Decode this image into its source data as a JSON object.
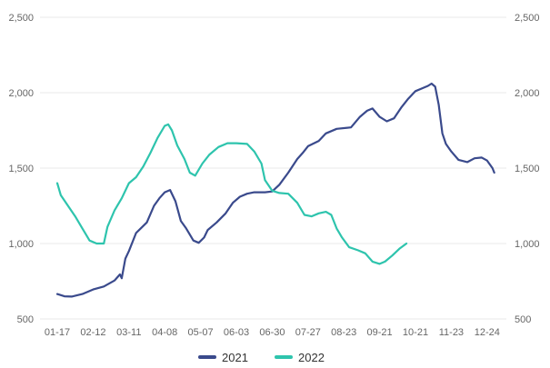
{
  "chart_data": {
    "type": "line",
    "title": "",
    "xlabel": "",
    "ylabel": "",
    "x_ticks": [
      "01-17",
      "02-12",
      "03-11",
      "04-08",
      "05-07",
      "06-03",
      "06-30",
      "07-27",
      "08-23",
      "09-21",
      "10-21",
      "11-23",
      "12-24"
    ],
    "y_ticks": [
      "500",
      "1,000",
      "1,500",
      "2,000",
      "2,500"
    ],
    "ylim": [
      500,
      2500
    ],
    "grid": true,
    "legend_position": "bottom",
    "series": [
      {
        "name": "2021",
        "color": "#3a4a8c",
        "points": [
          [
            0,
            665
          ],
          [
            0.2,
            650
          ],
          [
            0.4,
            648
          ],
          [
            0.7,
            665
          ],
          [
            1.0,
            695
          ],
          [
            1.3,
            715
          ],
          [
            1.6,
            755
          ],
          [
            1.75,
            795
          ],
          [
            1.8,
            770
          ],
          [
            1.9,
            900
          ],
          [
            2.0,
            950
          ],
          [
            2.2,
            1070
          ],
          [
            2.5,
            1140
          ],
          [
            2.7,
            1250
          ],
          [
            2.85,
            1300
          ],
          [
            3.0,
            1340
          ],
          [
            3.15,
            1355
          ],
          [
            3.3,
            1280
          ],
          [
            3.45,
            1150
          ],
          [
            3.6,
            1100
          ],
          [
            3.8,
            1020
          ],
          [
            3.95,
            1005
          ],
          [
            4.1,
            1040
          ],
          [
            4.2,
            1090
          ],
          [
            4.45,
            1140
          ],
          [
            4.7,
            1200
          ],
          [
            4.9,
            1270
          ],
          [
            5.1,
            1310
          ],
          [
            5.3,
            1330
          ],
          [
            5.5,
            1340
          ],
          [
            5.8,
            1340
          ],
          [
            6.0,
            1345
          ],
          [
            6.2,
            1390
          ],
          [
            6.45,
            1470
          ],
          [
            6.7,
            1560
          ],
          [
            6.85,
            1600
          ],
          [
            7.0,
            1645
          ],
          [
            7.3,
            1680
          ],
          [
            7.5,
            1730
          ],
          [
            7.8,
            1760
          ],
          [
            8.2,
            1770
          ],
          [
            8.45,
            1840
          ],
          [
            8.65,
            1880
          ],
          [
            8.8,
            1895
          ],
          [
            9.0,
            1840
          ],
          [
            9.2,
            1810
          ],
          [
            9.4,
            1830
          ],
          [
            9.6,
            1900
          ],
          [
            9.8,
            1960
          ],
          [
            10.0,
            2010
          ],
          [
            10.2,
            2030
          ],
          [
            10.35,
            2045
          ],
          [
            10.45,
            2060
          ],
          [
            10.55,
            2040
          ],
          [
            10.65,
            1920
          ],
          [
            10.75,
            1730
          ],
          [
            10.85,
            1660
          ],
          [
            11.0,
            1610
          ],
          [
            11.2,
            1555
          ],
          [
            11.45,
            1540
          ],
          [
            11.65,
            1565
          ],
          [
            11.85,
            1570
          ],
          [
            12.0,
            1550
          ],
          [
            12.15,
            1500
          ],
          [
            12.2,
            1470
          ]
        ]
      },
      {
        "name": "2022",
        "color": "#2ec4ad",
        "points": [
          [
            0,
            1400
          ],
          [
            0.1,
            1320
          ],
          [
            0.3,
            1250
          ],
          [
            0.5,
            1180
          ],
          [
            0.7,
            1100
          ],
          [
            0.9,
            1020
          ],
          [
            1.1,
            1000
          ],
          [
            1.3,
            1000
          ],
          [
            1.4,
            1110
          ],
          [
            1.6,
            1220
          ],
          [
            1.8,
            1300
          ],
          [
            2.0,
            1400
          ],
          [
            2.2,
            1440
          ],
          [
            2.4,
            1510
          ],
          [
            2.6,
            1600
          ],
          [
            2.8,
            1700
          ],
          [
            3.0,
            1780
          ],
          [
            3.1,
            1790
          ],
          [
            3.2,
            1750
          ],
          [
            3.35,
            1650
          ],
          [
            3.55,
            1560
          ],
          [
            3.7,
            1470
          ],
          [
            3.85,
            1450
          ],
          [
            4.05,
            1530
          ],
          [
            4.25,
            1590
          ],
          [
            4.5,
            1640
          ],
          [
            4.75,
            1665
          ],
          [
            5.0,
            1665
          ],
          [
            5.3,
            1660
          ],
          [
            5.5,
            1610
          ],
          [
            5.7,
            1530
          ],
          [
            5.8,
            1420
          ],
          [
            6.0,
            1350
          ],
          [
            6.2,
            1335
          ],
          [
            6.45,
            1330
          ],
          [
            6.7,
            1270
          ],
          [
            6.9,
            1190
          ],
          [
            7.1,
            1180
          ],
          [
            7.3,
            1200
          ],
          [
            7.5,
            1210
          ],
          [
            7.65,
            1190
          ],
          [
            7.8,
            1100
          ],
          [
            7.95,
            1040
          ],
          [
            8.15,
            975
          ],
          [
            8.4,
            955
          ],
          [
            8.6,
            935
          ],
          [
            8.8,
            880
          ],
          [
            9.0,
            865
          ],
          [
            9.15,
            880
          ],
          [
            9.35,
            920
          ],
          [
            9.55,
            965
          ],
          [
            9.75,
            1000
          ]
        ]
      }
    ]
  },
  "legend": {
    "items": [
      {
        "label": "2021",
        "color": "#3a4a8c"
      },
      {
        "label": "2022",
        "color": "#2ec4ad"
      }
    ]
  }
}
